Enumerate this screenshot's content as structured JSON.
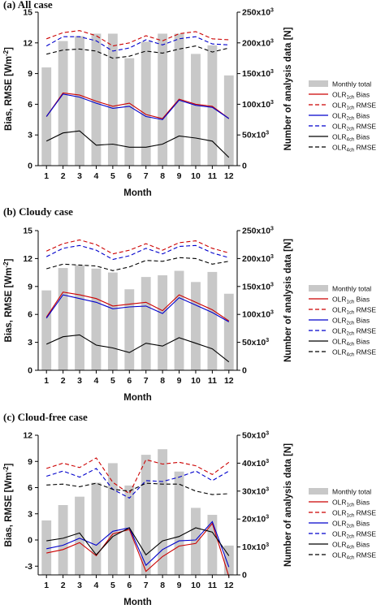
{
  "colors": {
    "bar": "#c8c8c8",
    "olr1": "#cc0000",
    "olr2": "#0000cc",
    "olr4": "#000000"
  },
  "legend": {
    "monthly_total": "Monthly total",
    "items": [
      {
        "base": "OLR",
        "sub": "1ch",
        "suffix": " Bias",
        "color": "#cc0000",
        "dash": false
      },
      {
        "base": "OLR",
        "sub": "1ch",
        "suffix": " RMSE",
        "color": "#cc0000",
        "dash": true
      },
      {
        "base": "OLR",
        "sub": "2ch",
        "suffix": " Bias",
        "color": "#0000cc",
        "dash": false
      },
      {
        "base": "OLR",
        "sub": "2ch",
        "suffix": " RMSE",
        "color": "#0000cc",
        "dash": true
      },
      {
        "base": "OLR",
        "sub": "4ch",
        "suffix": " Bias",
        "color": "#000000",
        "dash": false
      },
      {
        "base": "OLR",
        "sub": "4ch",
        "suffix": " RMSE",
        "color": "#000000",
        "dash": true
      }
    ]
  },
  "chart_data": [
    {
      "type": "bar+line",
      "title": "(a) All case",
      "xlabel": "Month",
      "ylabel": "Bias, RMSE [Wm",
      "ylabel_sup": "-2",
      "ylabel_end": "]",
      "y2label": "Number of analysis data [N]",
      "categories": [
        "1",
        "2",
        "3",
        "4",
        "5",
        "6",
        "7",
        "8",
        "9",
        "10",
        "11",
        "12"
      ],
      "ylim": [
        0,
        15
      ],
      "yticks": [
        "0",
        "3",
        "6",
        "9",
        "12",
        "15"
      ],
      "y2lim": [
        0,
        250000
      ],
      "y2ticks": [
        {
          "base": "0",
          "exp": ""
        },
        {
          "base": "50x10",
          "exp": "3"
        },
        {
          "base": "100x10",
          "exp": "3"
        },
        {
          "base": "150x10",
          "exp": "3"
        },
        {
          "base": "200x10",
          "exp": "3"
        },
        {
          "base": "250x10",
          "exp": "3"
        }
      ],
      "bars": [
        160000,
        203000,
        211000,
        215000,
        215000,
        175000,
        202000,
        215000,
        215000,
        182000,
        196000,
        147000
      ],
      "series": [
        {
          "name": "OLR1ch Bias",
          "values": [
            4.8,
            7.1,
            6.9,
            6.3,
            5.8,
            6.1,
            5.0,
            4.6,
            6.5,
            6.0,
            5.8,
            4.6
          ]
        },
        {
          "name": "OLR1ch RMSE",
          "values": [
            12.4,
            13.0,
            13.2,
            12.7,
            11.7,
            12.0,
            12.7,
            12.2,
            12.9,
            13.1,
            12.4,
            12.3
          ]
        },
        {
          "name": "OLR2ch Bias",
          "values": [
            4.8,
            7.0,
            6.7,
            6.1,
            5.6,
            5.8,
            4.8,
            4.5,
            6.4,
            5.9,
            5.7,
            4.6
          ]
        },
        {
          "name": "OLR2ch RMSE",
          "values": [
            11.7,
            12.6,
            12.6,
            12.2,
            11.2,
            11.5,
            12.3,
            11.8,
            12.4,
            12.6,
            11.9,
            11.8
          ]
        },
        {
          "name": "OLR4ch Bias",
          "values": [
            2.4,
            3.2,
            3.4,
            2.0,
            2.1,
            1.8,
            1.8,
            2.1,
            2.9,
            2.7,
            2.4,
            0.8
          ]
        },
        {
          "name": "OLR4ch RMSE",
          "values": [
            10.9,
            11.3,
            11.4,
            11.2,
            10.5,
            10.7,
            11.2,
            11.0,
            11.4,
            11.7,
            11.1,
            11.5
          ]
        }
      ]
    },
    {
      "type": "bar+line",
      "title": "(b) Cloudy case",
      "xlabel": "Month",
      "ylabel": "Bias, RMSE [Wm",
      "ylabel_sup": "-2",
      "ylabel_end": "]",
      "y2label": "Number of analysis data [N]",
      "categories": [
        "1",
        "2",
        "3",
        "4",
        "5",
        "6",
        "7",
        "8",
        "9",
        "10",
        "11",
        "12"
      ],
      "ylim": [
        0,
        15
      ],
      "yticks": [
        "0",
        "3",
        "6",
        "9",
        "12",
        "15"
      ],
      "y2lim": [
        0,
        250000
      ],
      "y2ticks": [
        {
          "base": "0",
          "exp": ""
        },
        {
          "base": "50x10",
          "exp": "3"
        },
        {
          "base": "100x10",
          "exp": "3"
        },
        {
          "base": "150x10",
          "exp": "3"
        },
        {
          "base": "200x10",
          "exp": "3"
        },
        {
          "base": "250x10",
          "exp": "3"
        }
      ],
      "bars": [
        143000,
        183000,
        188000,
        182000,
        175000,
        145000,
        167000,
        170000,
        178000,
        158000,
        176000,
        137000
      ],
      "series": [
        {
          "name": "OLR1ch Bias",
          "values": [
            5.7,
            8.4,
            8.1,
            7.7,
            6.9,
            7.1,
            7.3,
            6.4,
            8.1,
            7.3,
            6.5,
            5.3
          ]
        },
        {
          "name": "OLR1ch RMSE",
          "values": [
            12.8,
            13.6,
            14.0,
            13.5,
            12.5,
            12.9,
            13.6,
            12.9,
            13.7,
            13.9,
            13.1,
            12.6
          ]
        },
        {
          "name": "OLR2ch Bias",
          "values": [
            5.6,
            8.1,
            7.7,
            7.3,
            6.6,
            6.8,
            6.9,
            6.1,
            7.8,
            7.0,
            6.2,
            5.2
          ]
        },
        {
          "name": "OLR2ch RMSE",
          "values": [
            12.2,
            13.1,
            13.4,
            12.9,
            11.9,
            12.3,
            13.1,
            12.5,
            13.3,
            13.4,
            12.6,
            12.1
          ]
        },
        {
          "name": "OLR4ch Bias",
          "values": [
            2.8,
            3.6,
            3.8,
            2.7,
            2.4,
            1.9,
            2.9,
            2.6,
            3.5,
            2.9,
            2.3,
            0.9
          ]
        },
        {
          "name": "OLR4ch RMSE",
          "values": [
            10.9,
            11.4,
            11.3,
            11.2,
            10.7,
            11.1,
            11.8,
            11.7,
            12.1,
            12.0,
            11.4,
            11.7
          ]
        }
      ]
    },
    {
      "type": "bar+line",
      "title": "(c) Cloud-free case",
      "xlabel": "Month",
      "ylabel": "Bias, RMSE [Wm",
      "ylabel_sup": "-2",
      "ylabel_end": "]",
      "y2label": "Number of analysis data [N]",
      "categories": [
        "1",
        "2",
        "3",
        "4",
        "5",
        "6",
        "7",
        "8",
        "9",
        "10",
        "11",
        "12"
      ],
      "ylim": [
        -4,
        12
      ],
      "yticks": [
        "-3",
        "0",
        "3",
        "6",
        "9",
        "12"
      ],
      "y2lim": [
        0,
        50000
      ],
      "y2ticks": [
        {
          "base": "0",
          "exp": ""
        },
        {
          "base": "10x10",
          "exp": "3"
        },
        {
          "base": "20x10",
          "exp": "3"
        },
        {
          "base": "30x10",
          "exp": "3"
        },
        {
          "base": "40x10",
          "exp": "3"
        },
        {
          "base": "50x10",
          "exp": "3"
        }
      ],
      "bars": [
        19500,
        25000,
        28000,
        33000,
        40000,
        32000,
        43000,
        45000,
        37000,
        24000,
        21500,
        10500
      ],
      "series": [
        {
          "name": "OLR1ch Bias",
          "values": [
            -1.5,
            -1.1,
            -0.3,
            -1.8,
            0.7,
            1.2,
            -3.6,
            -1.9,
            -0.7,
            -0.4,
            1.9,
            -4.2
          ]
        },
        {
          "name": "OLR1ch RMSE",
          "values": [
            8.2,
            8.8,
            8.3,
            9.4,
            6.6,
            5.3,
            9.2,
            8.7,
            8.9,
            8.5,
            7.5,
            8.9
          ]
        },
        {
          "name": "OLR2ch Bias",
          "values": [
            -1.0,
            -0.6,
            0.2,
            -0.6,
            1.0,
            1.4,
            -2.9,
            -1.1,
            -0.1,
            0.0,
            2.1,
            -3.1
          ]
        },
        {
          "name": "OLR2ch RMSE",
          "values": [
            7.3,
            7.9,
            7.2,
            8.2,
            5.8,
            4.8,
            6.8,
            6.7,
            7.2,
            7.9,
            6.8,
            7.9
          ]
        },
        {
          "name": "OLR4ch Bias",
          "values": [
            -0.1,
            0.2,
            0.8,
            -1.7,
            0.4,
            1.4,
            -1.7,
            -0.1,
            0.4,
            1.4,
            0.9,
            -1.8
          ]
        },
        {
          "name": "OLR4ch RMSE",
          "values": [
            6.3,
            6.4,
            6.1,
            6.5,
            5.8,
            5.6,
            6.5,
            6.4,
            6.4,
            5.6,
            5.2,
            5.3
          ]
        }
      ]
    }
  ]
}
